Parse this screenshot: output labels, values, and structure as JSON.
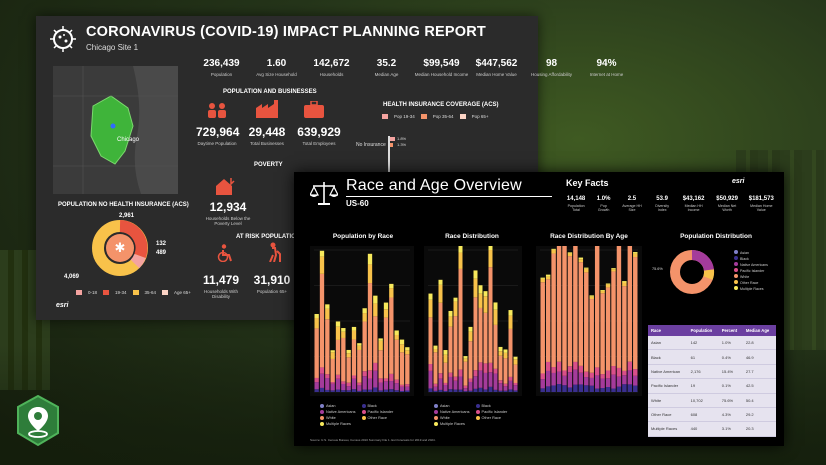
{
  "dash1": {
    "title": "CORONAVIRUS (COVID-19) IMPACT PLANNING REPORT",
    "subtitle": "Chicago Site 1",
    "map_city": "Chicago",
    "stats": [
      {
        "value": "236,439",
        "label": "Population"
      },
      {
        "value": "1.60",
        "label": "Avg Size Household"
      },
      {
        "value": "142,672",
        "label": "Households"
      },
      {
        "value": "35.2",
        "label": "Median Age"
      },
      {
        "value": "$99,549",
        "label": "Median Household Income"
      },
      {
        "value": "$447,562",
        "label": "Median Home Value"
      },
      {
        "value": "98",
        "label": "Housing Affordability"
      },
      {
        "value": "94%",
        "label": "Internet at Home"
      }
    ],
    "pop_business": {
      "heading": "POPULATION AND BUSINESSES",
      "items": [
        {
          "value": "729,964",
          "label": "Daytime Population"
        },
        {
          "value": "29,448",
          "label": "Total Businesses"
        },
        {
          "value": "639,929",
          "label": "Total Employees"
        }
      ]
    },
    "health": {
      "heading": "HEALTH INSURANCE COVERAGE (ACS)",
      "legend": [
        "Pop 19-34",
        "Pop 35-64",
        "Pop 65+"
      ],
      "row_label": "No Insurance",
      "values": [
        "1.8%",
        "1.3%"
      ]
    },
    "poverty": {
      "heading": "POVERTY",
      "value": "12,934",
      "label": "Households Below the Poverty Level"
    },
    "no_health": {
      "heading": "POPULATION NO HEALTH INSURANCE (ACS)",
      "values": {
        "top": "2,961",
        "right_a": "132",
        "right_b": "489",
        "bottom": "4,069"
      },
      "legend": [
        "0-18",
        "19-34",
        "35-64",
        "Age 65+"
      ]
    },
    "at_risk": {
      "heading": "AT RISK POPULATION",
      "items": [
        {
          "value": "11,479",
          "label": "Households With Disability"
        },
        {
          "value": "31,910",
          "label": "Population 65+"
        }
      ]
    },
    "brand": "esri"
  },
  "dash2": {
    "title": "Race and Age Overview",
    "subtitle": "US-60",
    "key_facts_title": "Key Facts",
    "key_facts": [
      {
        "value": "14,148",
        "label": "Population Total"
      },
      {
        "value": "1.0%",
        "label": "Pop Growth"
      },
      {
        "value": "2.5",
        "label": "Average HH Size"
      },
      {
        "value": "53.9",
        "label": "Diversity Index"
      },
      {
        "value": "$43,162",
        "label": "Median HH Income"
      },
      {
        "value": "$50,929",
        "label": "Median Net Worth"
      },
      {
        "value": "$181,573",
        "label": "Median Home Value"
      }
    ],
    "brand": "esri",
    "panels": [
      "Population by Race",
      "Race Distribution",
      "Race Distribution By Age",
      "Population Distribution"
    ],
    "legend": [
      "Asian",
      "Black",
      "Native Americans",
      "Pacific Islander",
      "White",
      "Other Race",
      "Multiple Races"
    ],
    "donut_label": "75.6%",
    "table": {
      "headers": [
        "Race",
        "Population",
        "Percent",
        "Median Age"
      ],
      "rows": [
        [
          "Asian",
          "142",
          "1.0%",
          "22.8"
        ],
        [
          "Black",
          "61",
          "0.4%",
          "46.9"
        ],
        [
          "Native American",
          "2,176",
          "15.4%",
          "27.7"
        ],
        [
          "Pacific Islander",
          "19",
          "0.1%",
          "42.5"
        ],
        [
          "White",
          "10,702",
          "75.6%",
          "50.4"
        ],
        [
          "Other Race",
          "608",
          "4.3%",
          "29.2"
        ],
        [
          "Multiple Races",
          "440",
          "3.1%",
          "20.3"
        ]
      ]
    },
    "footer": "Source: U.S. Census Bureau, Census 2010 Summary File 1. Esri forecasts for 2019 and 2024."
  },
  "colors": {
    "asian": "#7f80c8",
    "black": "#3a2f8f",
    "native": "#a43b9b",
    "pacific": "#d94f8a",
    "white": "#f4936a",
    "other": "#f8c24a",
    "multiple": "#f7e95c",
    "accent_red": "#e8543f",
    "accent_purple": "#6b3fa0"
  }
}
